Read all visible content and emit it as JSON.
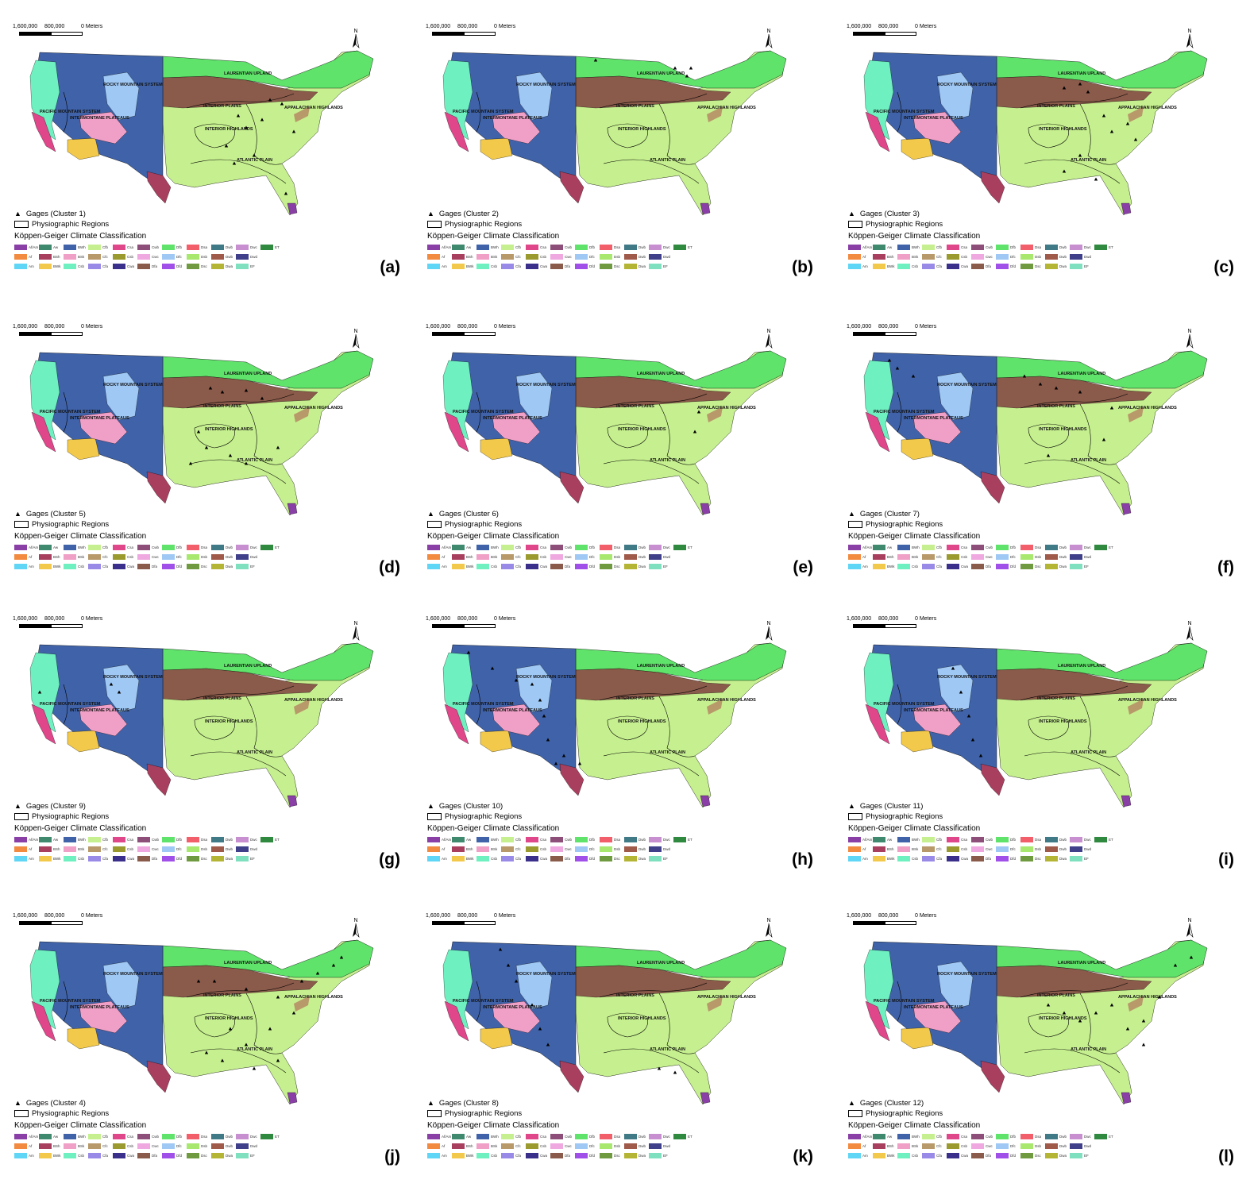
{
  "scale": {
    "left": "1,600,000",
    "mid": "800,000",
    "right": "0 Meters"
  },
  "north_label": "N",
  "regions": {
    "laurentian": "LAURENTIAN UPLAND",
    "rocky": "ROCKY MOUNTAIN SYSTEM",
    "pacific": "PACIFIC MOUNTAIN SYSTEM",
    "intermontane": "INTERMONTANE PLATEAUS",
    "interior_plains": "INTERIOR PLAINS",
    "appalachian": "APPALACHIAN HIGHLANDS",
    "interior_highlands": "INTERIOR HIGHLANDS",
    "atlantic": "ATLANTIC PLAIN"
  },
  "legend": {
    "physio": "Physiographic Regions",
    "climate_title": "Köppen-Geiger Climate Classification"
  },
  "climate_classes": [
    {
      "code": "Af/Am",
      "color": "#8a3fa6"
    },
    {
      "code": "Aw",
      "color": "#3f8a6f"
    },
    {
      "code": "BWh",
      "color": "#3f62a8"
    },
    {
      "code": "Cfb",
      "color": "#c6f08f"
    },
    {
      "code": "Csa",
      "color": "#e0468a"
    },
    {
      "code": "Cwb",
      "color": "#8d4f7a"
    },
    {
      "code": "Dfb",
      "color": "#5fe36a"
    },
    {
      "code": "Dsa",
      "color": "#f25f6b"
    },
    {
      "code": "Dwb",
      "color": "#3f7a86"
    },
    {
      "code": "Dwc",
      "color": "#c78fcf"
    },
    {
      "code": "ET",
      "color": "#2f8a3f"
    },
    {
      "code": "Af",
      "color": "#f28a3f"
    },
    {
      "code": "BSh",
      "color": "#a83f5f"
    },
    {
      "code": "BSk",
      "color": "#f09fc6"
    },
    {
      "code": "Cfc",
      "color": "#b8996a"
    },
    {
      "code": "Csb",
      "color": "#9a9a2f"
    },
    {
      "code": "Cwc",
      "color": "#f0a8e0"
    },
    {
      "code": "Dfc",
      "color": "#9fc8f5"
    },
    {
      "code": "Dsb",
      "color": "#a8e86f"
    },
    {
      "code": "Dwb",
      "color": "#a05a4a"
    },
    {
      "code": "Dwd",
      "color": "#3f3f8a"
    },
    {
      "code": "",
      "color": "#ffffff"
    },
    {
      "code": "Am",
      "color": "#5fd6f5"
    },
    {
      "code": "BWk",
      "color": "#f2c94a"
    },
    {
      "code": "Csb",
      "color": "#6ff0c0"
    },
    {
      "code": "Cfa",
      "color": "#9a8ae8"
    },
    {
      "code": "Cwa",
      "color": "#3a2f8a"
    },
    {
      "code": "Dfa",
      "color": "#8a5a4a"
    },
    {
      "code": "Dfd",
      "color": "#a04fe8"
    },
    {
      "code": "Dsc",
      "color": "#6f9a3f"
    },
    {
      "code": "Dwa",
      "color": "#b5b535"
    },
    {
      "code": "EF",
      "color": "#7fe0c0"
    },
    {
      "code": "",
      "color": "#ffffff"
    }
  ],
  "panels": [
    {
      "tag": "(a)",
      "gages": "Gages (Cluster 1)"
    },
    {
      "tag": "(b)",
      "gages": "Gages (Cluster 2)"
    },
    {
      "tag": "(c)",
      "gages": "Gages (Cluster 3)"
    },
    {
      "tag": "(d)",
      "gages": "Gages (Cluster 5)"
    },
    {
      "tag": "(e)",
      "gages": "Gages (Cluster 6)"
    },
    {
      "tag": "(f)",
      "gages": "Gages (Cluster 7)"
    },
    {
      "tag": "(g)",
      "gages": "Gages (Cluster 9)"
    },
    {
      "tag": "(h)",
      "gages": "Gages (Cluster 10)"
    },
    {
      "tag": "(i)",
      "gages": "Gages (Cluster 11)"
    },
    {
      "tag": "(j)",
      "gages": "Gages (Cluster 4)"
    },
    {
      "tag": "(k)",
      "gages": "Gages (Cluster 8)"
    },
    {
      "tag": "(l)",
      "gages": "Gages (Cluster 12)"
    }
  ]
}
